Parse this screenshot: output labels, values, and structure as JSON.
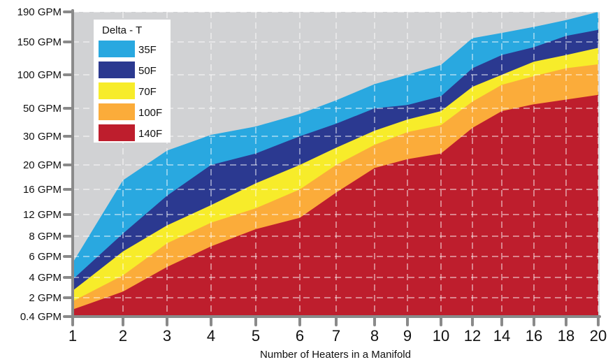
{
  "chart_data": {
    "type": "area",
    "title": "",
    "xlabel": "Number of Heaters in a Manifold",
    "ylabel": "",
    "x": [
      1,
      2,
      3,
      4,
      5,
      6,
      7,
      8,
      9,
      10,
      12,
      14,
      16,
      18,
      20
    ],
    "x_tick_labels": [
      "1",
      "2",
      "3",
      "4",
      "5",
      "6",
      "7",
      "8",
      "9",
      "10",
      "12",
      "14",
      "16",
      "18",
      "20"
    ],
    "y_tick_labels": [
      "0.4 GPM",
      "2 GPM",
      "4 GPM",
      "6 GPM",
      "8 GPM",
      "12 GPM",
      "16 GPM",
      "20 GPM",
      "30 GPM",
      "50 GPM",
      "100 GPM",
      "150 GPM",
      "190 GPM"
    ],
    "y_scale": "custom non-uniform (tick labels evenly spaced)",
    "grid": true,
    "legend": {
      "title": "Delta - T",
      "position": "top-left"
    },
    "series": [
      {
        "name": "35F",
        "color": "#29a8e0",
        "values": [
          5.4,
          17.5,
          25,
          31,
          37,
          46,
          62,
          86,
          100,
          115,
          155,
          162,
          170,
          179,
          190
        ]
      },
      {
        "name": "50F",
        "color": "#2b3990",
        "values": [
          3.8,
          8.5,
          15,
          20,
          24,
          30,
          39,
          50,
          55,
          68,
          110,
          130,
          142,
          158,
          166
        ]
      },
      {
        "name": "70F",
        "color": "#f7ec2a",
        "values": [
          2.7,
          6.5,
          10,
          13.5,
          17,
          20,
          26,
          34,
          42,
          48,
          82,
          100,
          120,
          130,
          141
        ]
      },
      {
        "name": "100F",
        "color": "#fbac3a",
        "values": [
          1.7,
          4.2,
          7.3,
          10.5,
          13,
          16,
          20,
          27,
          33,
          38,
          60,
          85,
          98,
          110,
          116
        ]
      },
      {
        "name": "140F",
        "color": "#be1e2d",
        "values": [
          1.0,
          2.6,
          5.0,
          7.0,
          9.3,
          11.4,
          15.5,
          19.5,
          22,
          24,
          36,
          48,
          56,
          63,
          70
        ]
      }
    ],
    "background_color": "#d1d2d4"
  }
}
